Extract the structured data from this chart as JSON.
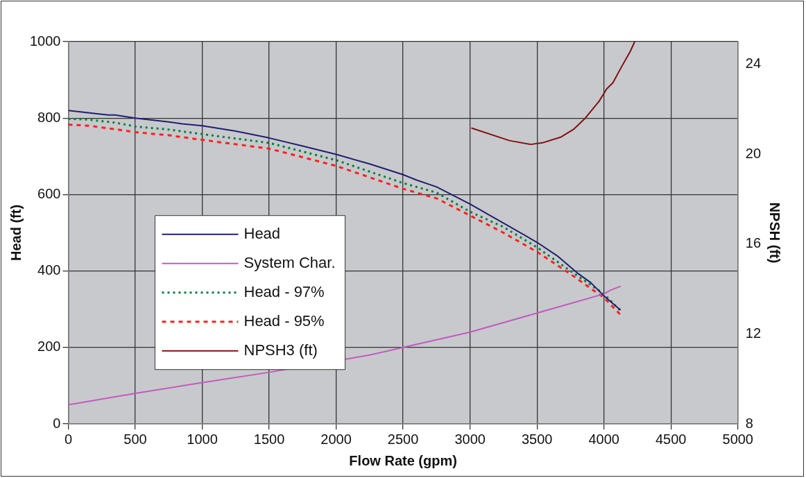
{
  "chart_data": {
    "type": "line",
    "xlabel": "Flow Rate (gpm)",
    "ylabel": "Head (ft)",
    "y2label": "NPSH (ft)",
    "xlim": [
      0,
      5000
    ],
    "xticks": [
      0,
      500,
      1000,
      1500,
      2000,
      2500,
      3000,
      3500,
      4000,
      4500,
      5000
    ],
    "ylim": [
      0,
      1000
    ],
    "yticks": [
      0,
      200,
      400,
      600,
      800,
      1000
    ],
    "y2lim": [
      8,
      25
    ],
    "y2ticks": [
      8,
      12,
      16,
      20,
      24
    ],
    "grid": true,
    "legend": "left",
    "marker": "none",
    "series": [
      {
        "name": "Head",
        "color": "#1f2070",
        "line_style": "solid",
        "x": [
          0,
          250,
          300,
          350,
          500,
          750,
          850,
          1000,
          1250,
          1500,
          1750,
          2000,
          2250,
          2500,
          2600,
          2750,
          3000,
          3250,
          3500,
          3650,
          3800,
          3900,
          4000,
          4100,
          4125
        ],
        "values": [
          820,
          810,
          808,
          808,
          800,
          790,
          785,
          780,
          766,
          748,
          727,
          705,
          680,
          652,
          638,
          620,
          575,
          525,
          475,
          440,
          395,
          370,
          335,
          305,
          298
        ]
      },
      {
        "name": "System Char.",
        "color": "#c05bc0",
        "line_style": "solid",
        "x": [
          0,
          500,
          1000,
          1500,
          2000,
          2250,
          2500,
          3000,
          3500,
          3750,
          4000,
          4050,
          4125
        ],
        "values": [
          50,
          80,
          108,
          135,
          null,
          180,
          200,
          240,
          290,
          315,
          340,
          350,
          360
        ]
      },
      {
        "name": "Head - 97%",
        "color": "#008040",
        "line_style": "dotted",
        "x": [
          0,
          150,
          350,
          500,
          750,
          1000,
          1500,
          2000,
          2500,
          2750,
          3000,
          3250,
          3500,
          3750,
          4000,
          4125
        ],
        "values": [
          798,
          796,
          788,
          778,
          770,
          758,
          735,
          690,
          630,
          605,
          555,
          515,
          462,
          400,
          340,
          295
        ]
      },
      {
        "name": "Head - 95%",
        "color": "#ff2020",
        "line_style": "dashed",
        "x": [
          0,
          150,
          350,
          500,
          750,
          1000,
          1500,
          2000,
          2500,
          2750,
          3000,
          3250,
          3500,
          3750,
          4000,
          4125
        ],
        "values": [
          783,
          780,
          771,
          763,
          755,
          743,
          720,
          675,
          615,
          590,
          545,
          500,
          450,
          392,
          330,
          285
        ]
      },
      {
        "name": "NPSH3 (ft)",
        "color": "#801010",
        "line_style": "solid",
        "axis": "y2",
        "x": [
          3010,
          3294,
          3454,
          3541,
          3680,
          3773,
          3861,
          3964,
          4021,
          4067,
          4124,
          4196,
          4230
        ],
        "values": [
          21.16,
          20.6,
          20.43,
          20.5,
          20.76,
          21.1,
          21.6,
          22.35,
          22.9,
          23.17,
          23.8,
          24.56,
          25
        ]
      }
    ]
  }
}
